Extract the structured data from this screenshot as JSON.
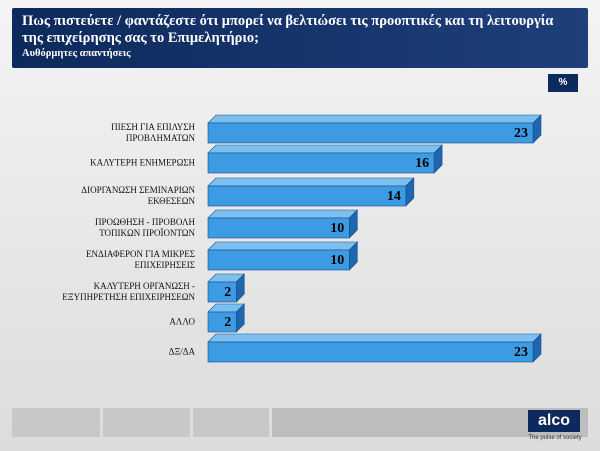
{
  "chart_data": {
    "type": "bar",
    "orientation": "horizontal",
    "title": "Πως πιστεύετε / φαντάζεστε  ότι μπορεί να βελτιώσει τις προοπτικές και τη λειτουργία της επιχείρησης σας το Επιμελητήριο;",
    "subtitle": "Αυθόρμητες απαντήσεις",
    "unit": "%",
    "categories": [
      "ΠΙΕΣΗ ΓΙΑ ΕΠΙΛΥΣΗ\nΠΡΟΒΛΗΜΑΤΩΝ",
      "ΚΑΛΥΤΕΡΗ ΕΝΗΜΕΡΩΣΗ",
      "ΔΙΟΡΓΑΝΩΣΗ ΣΕΜΙΝΑΡΙΩΝ\nΕΚΘΕΣΕΩΝ",
      "ΠΡΟΩΘΗΣΗ - ΠΡΟΒΟΛΗ\nΤΟΠΙΚΩΝ ΠΡΟΪΟΝΤΩΝ",
      "ΕΝΔΙΑΦΕΡΟΝ ΓΙΑ ΜΙΚΡΕΣ\nΕΠΙΧΕΙΡΗΣΕΙΣ",
      "ΚΑΛΥΤΕΡΗ ΟΡΓΑΝΩΣΗ -\nΕΞΥΠΗΡΕΤΗΣΗ ΕΠΙΧΕΙΡΗΣΕΩΝ",
      "ΑΛΛΟ",
      "ΔΞ/ΔΑ"
    ],
    "values": [
      23,
      16,
      14,
      10,
      10,
      2,
      2,
      23
    ],
    "color": "#3d9be4"
  },
  "footer": {
    "logo": "alco",
    "tagline": "The pulse of society"
  }
}
